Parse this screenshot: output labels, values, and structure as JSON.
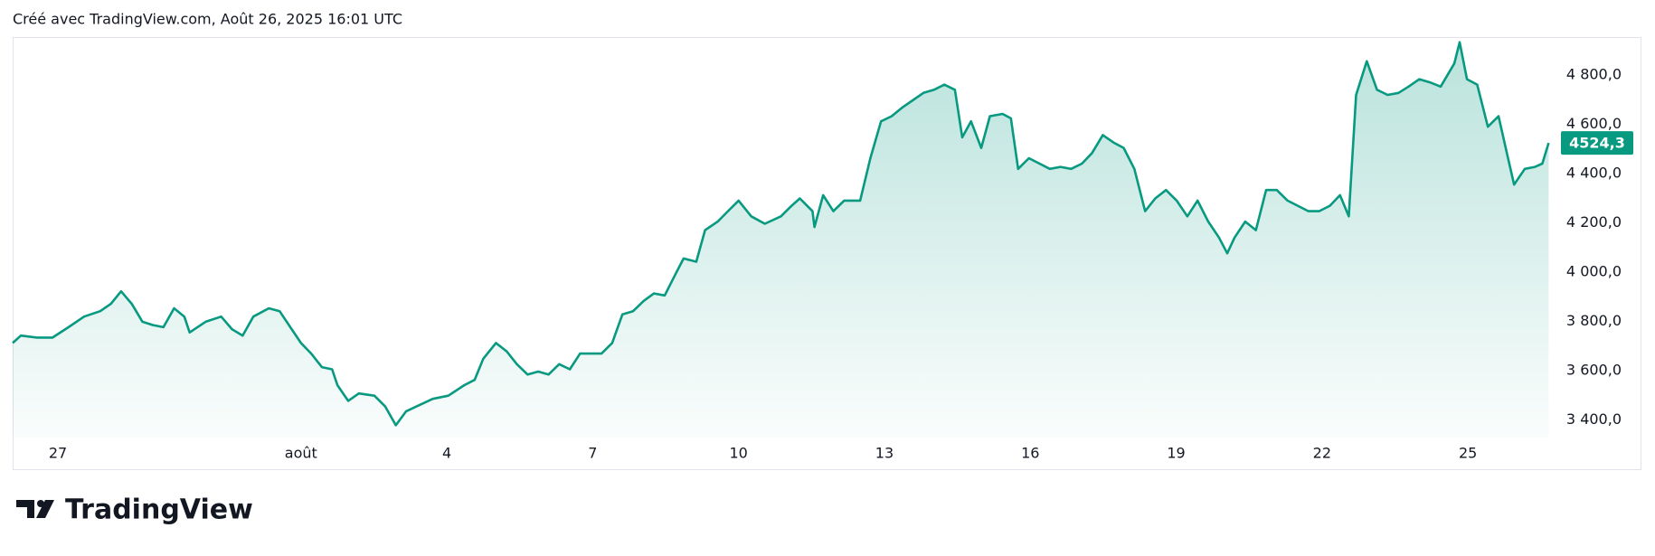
{
  "header": "Créé avec TradingView.com, Août 26, 2025 16:01 UTC",
  "brand": "TradingView",
  "chart_data": {
    "type": "area",
    "color": "#089981",
    "x": [
      26.07,
      26.24,
      26.57,
      26.89,
      27.22,
      27.54,
      27.87,
      28.09,
      28.3,
      28.52,
      28.74,
      28.95,
      29.17,
      29.39,
      29.6,
      29.71,
      30.04,
      30.36,
      30.58,
      30.8,
      31.02,
      31.34,
      31.56,
      31.78,
      32.0,
      32.21,
      32.43,
      32.64,
      32.75,
      32.97,
      33.19,
      33.51,
      33.73,
      33.95,
      34.16,
      34.38,
      34.71,
      35.03,
      35.36,
      35.57,
      35.75,
      36.01,
      36.23,
      36.44,
      36.66,
      36.88,
      37.09,
      37.31,
      37.53,
      37.74,
      37.96,
      38.18,
      38.4,
      38.61,
      38.83,
      39.05,
      39.26,
      39.48,
      39.7,
      39.87,
      40.13,
      40.31,
      40.57,
      40.78,
      41.0,
      41.26,
      41.54,
      41.87,
      42.09,
      42.26,
      42.52,
      42.56,
      42.74,
      42.95,
      43.17,
      43.5,
      43.71,
      43.93,
      44.15,
      44.36,
      44.58,
      44.8,
      45.02,
      45.23,
      45.45,
      45.6,
      45.78,
      45.99,
      46.17,
      46.43,
      46.6,
      46.75,
      46.97,
      47.19,
      47.4,
      47.62,
      47.84,
      48.06,
      48.27,
      48.49,
      48.71,
      48.92,
      49.14,
      49.36,
      49.57,
      49.79,
      50.01,
      50.23,
      50.44,
      50.66,
      50.88,
      51.05,
      51.2,
      51.42,
      51.64,
      51.85,
      52.07,
      52.29,
      52.5,
      52.72,
      52.94,
      53.16,
      53.37,
      53.55,
      53.7,
      53.92,
      54.13,
      54.35,
      54.57,
      54.78,
      55.0,
      55.22,
      55.44,
      55.72,
      55.83,
      55.98,
      56.19,
      56.41,
      56.63,
      56.8,
      56.95,
      57.17,
      57.38,
      57.53,
      57.66
    ],
    "values": [
      3712,
      3742,
      3734,
      3734,
      3776,
      3819,
      3841,
      3871,
      3922,
      3871,
      3798,
      3785,
      3776,
      3853,
      3819,
      3755,
      3798,
      3819,
      3768,
      3742,
      3819,
      3853,
      3841,
      3776,
      3712,
      3669,
      3614,
      3605,
      3541,
      3477,
      3507,
      3498,
      3455,
      3378,
      3434,
      3455,
      3485,
      3498,
      3541,
      3562,
      3648,
      3712,
      3678,
      3626,
      3584,
      3596,
      3584,
      3626,
      3605,
      3669,
      3669,
      3669,
      3712,
      3828,
      3841,
      3883,
      3913,
      3905,
      3991,
      4055,
      4042,
      4170,
      4205,
      4247,
      4290,
      4226,
      4196,
      4226,
      4269,
      4299,
      4247,
      4183,
      4312,
      4247,
      4290,
      4290,
      4462,
      4612,
      4633,
      4667,
      4697,
      4727,
      4740,
      4761,
      4740,
      4547,
      4612,
      4504,
      4633,
      4642,
      4624,
      4419,
      4462,
      4440,
      4419,
      4427,
      4419,
      4440,
      4483,
      4556,
      4526,
      4504,
      4419,
      4247,
      4299,
      4333,
      4290,
      4226,
      4290,
      4205,
      4140,
      4076,
      4140,
      4205,
      4170,
      4333,
      4333,
      4290,
      4269,
      4247,
      4247,
      4269,
      4312,
      4226,
      4719,
      4856,
      4740,
      4719,
      4727,
      4753,
      4783,
      4770,
      4753,
      4847,
      4933,
      4783,
      4761,
      4590,
      4633,
      4483,
      4355,
      4419,
      4427,
      4440,
      4524.3
    ],
    "last_label": "4524,3",
    "xlim": [
      26.07,
      57.69
    ],
    "xticks": [
      27,
      {
        "value": 32,
        "label": "août"
      },
      {
        "value": 35,
        "label": "4"
      },
      {
        "value": 38,
        "label": "7"
      },
      {
        "value": 41,
        "label": "10"
      },
      {
        "value": 44,
        "label": "13"
      },
      {
        "value": 47,
        "label": "16"
      },
      {
        "value": 50,
        "label": "19"
      },
      {
        "value": 53,
        "label": "22"
      },
      {
        "value": 56,
        "label": "25"
      }
    ],
    "ylim": [
      3328,
      4954
    ],
    "yticks": [
      {
        "value": 3400,
        "label": "3 400,0"
      },
      {
        "value": 3600,
        "label": "3 600,0"
      },
      {
        "value": 3800,
        "label": "3 800,0"
      },
      {
        "value": 4000,
        "label": "4 000,0"
      },
      {
        "value": 4200,
        "label": "4 200,0"
      },
      {
        "value": 4400,
        "label": "4 400,0"
      },
      {
        "value": 4600,
        "label": "4 600,0"
      },
      {
        "value": 4800,
        "label": "4 800,0"
      }
    ]
  }
}
